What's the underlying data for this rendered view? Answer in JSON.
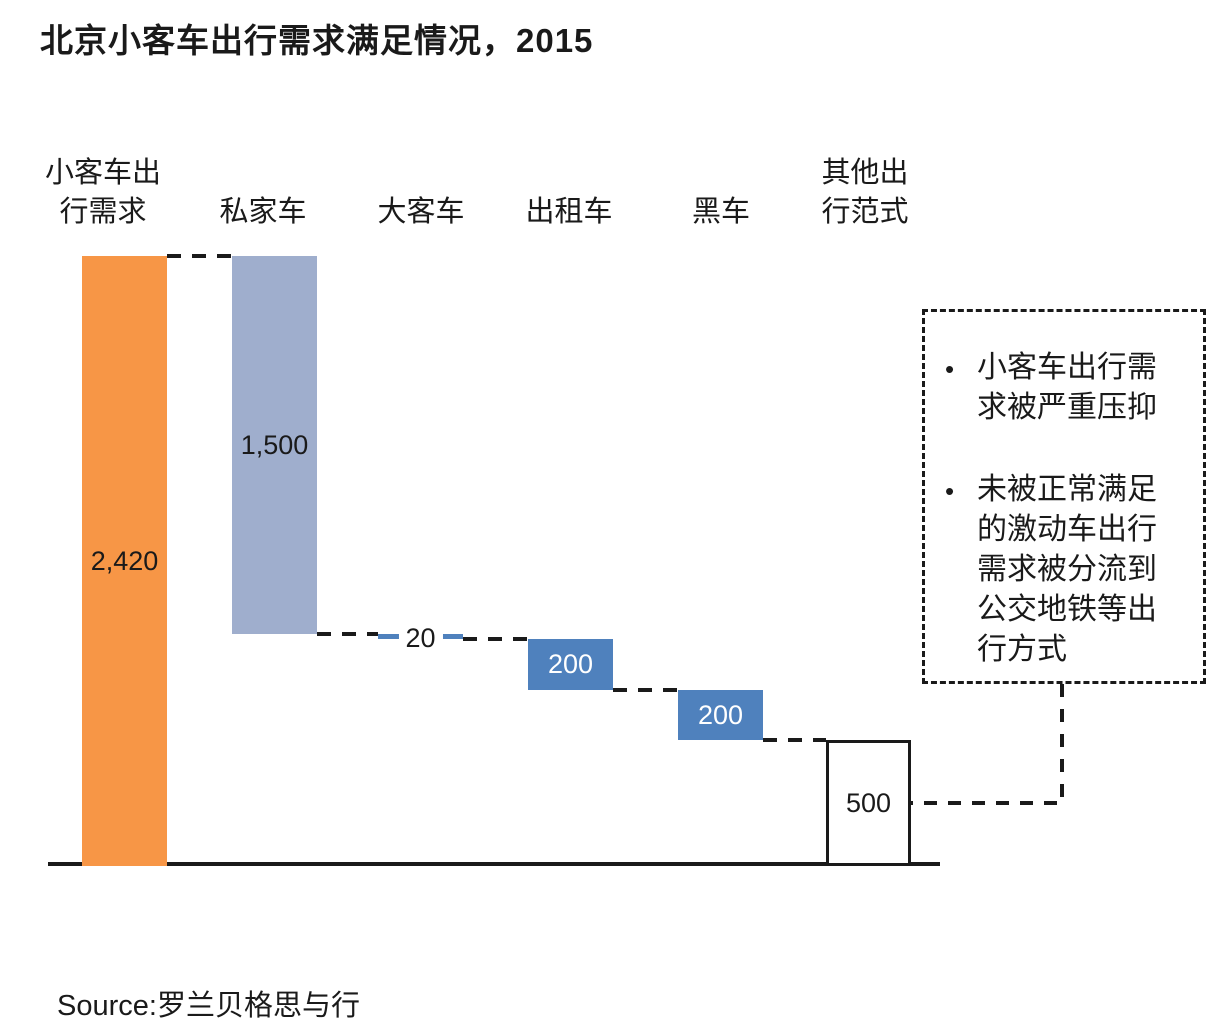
{
  "chart_data": {
    "type": "bar",
    "variant": "waterfall",
    "title": "北京小客车出行需求满足情况，2015",
    "categories": [
      "小客车出行需求",
      "私家车",
      "大客车",
      "出租车",
      "黑车",
      "其他出行范式"
    ],
    "category_display": [
      "小客车出\n行需求",
      "私家车",
      "大客车",
      "出租车",
      "黑车",
      "其他出\n行范式"
    ],
    "values": [
      2420,
      1500,
      20,
      200,
      200,
      500
    ],
    "value_labels": [
      "2,420",
      "1,500",
      "20",
      "200",
      "200",
      "500"
    ],
    "bar_roles": [
      "total",
      "decrease_light",
      "decrease",
      "decrease",
      "decrease",
      "remainder"
    ],
    "value_label_styles": [
      "dark",
      "dark",
      "dark",
      "light",
      "light",
      "dark"
    ],
    "ylim": [
      0,
      2420
    ],
    "xlabel": "",
    "ylabel": "",
    "grid": false,
    "legend": "none",
    "colors": {
      "total": "#F79646",
      "decrease_light": "#9FAECD",
      "decrease": "#4F81BD",
      "remainder_fill": "#FFFFFF",
      "remainder_border": "#1A1A1A",
      "connector": "#1A1A1A",
      "label_dark": "#1A1A1A",
      "label_light": "#FFFFFF"
    }
  },
  "annotation_box": {
    "bullet_glyph": "•",
    "bullets": [
      "小客车出行需\n求被严重压抑",
      "未被正常满足\n的激动车出行\n需求被分流到\n公交地铁等出\n行方式"
    ]
  },
  "source": {
    "text": "Source:罗兰贝格思与行"
  }
}
